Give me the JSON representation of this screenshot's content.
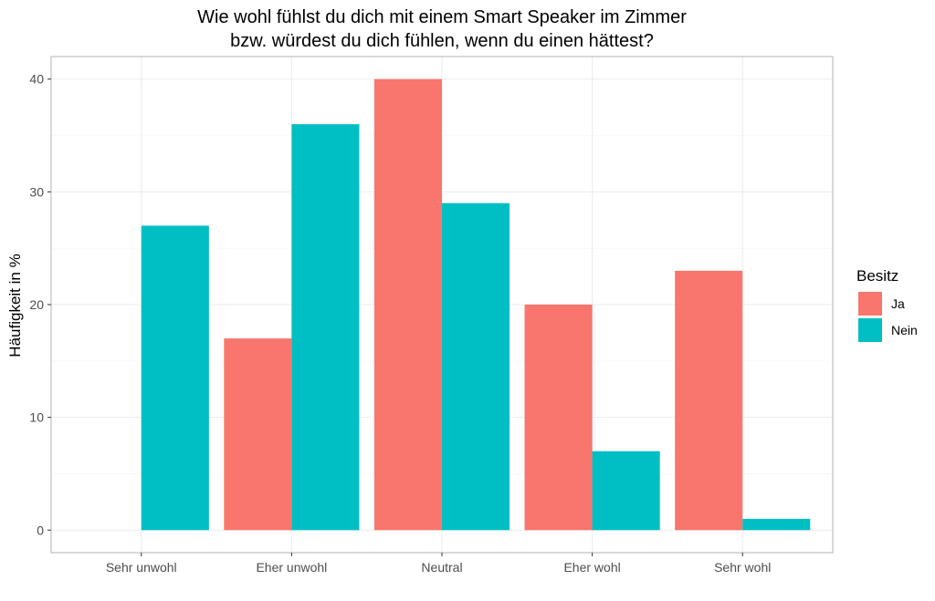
{
  "chart_data": {
    "type": "bar",
    "title_lines": [
      "Wie wohl fühlst du dich mit einem Smart Speaker im Zimmer",
      "bzw. würdest du dich fühlen, wenn du einen hättest?"
    ],
    "xlabel": "",
    "ylabel": "Häufigkeit in %",
    "categories": [
      "Sehr unwohl",
      "Eher unwohl",
      "Neutral",
      "Eher wohl",
      "Sehr wohl"
    ],
    "series": [
      {
        "name": "Ja",
        "color": "#F8766D",
        "values": [
          0,
          17,
          40,
          20,
          23
        ]
      },
      {
        "name": "Nein",
        "color": "#00BFC4",
        "values": [
          27,
          36,
          29,
          7,
          1
        ]
      }
    ],
    "ylim": [
      -2,
      42
    ],
    "yticks": [
      0,
      10,
      20,
      30,
      40
    ],
    "ytick_labels": [
      "0",
      "10",
      "20",
      "30",
      "40"
    ],
    "grid": true,
    "legend": {
      "title": "Besitz",
      "position": "right"
    }
  }
}
